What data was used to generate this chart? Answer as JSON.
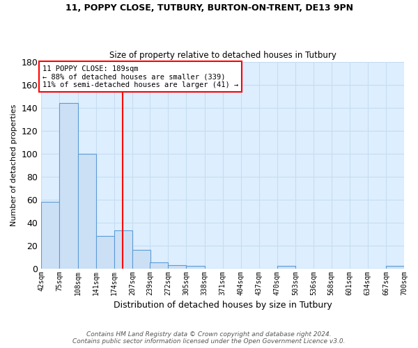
{
  "title1": "11, POPPY CLOSE, TUTBURY, BURTON-ON-TRENT, DE13 9PN",
  "title2": "Size of property relative to detached houses in Tutbury",
  "xlabel": "Distribution of detached houses by size in Tutbury",
  "ylabel": "Number of detached properties",
  "footnote": "Contains HM Land Registry data © Crown copyright and database right 2024.\nContains public sector information licensed under the Open Government Licence v3.0.",
  "bin_edges": [
    42,
    75,
    108,
    141,
    174,
    207,
    239,
    272,
    305,
    338,
    371,
    404,
    437,
    470,
    503,
    536,
    568,
    601,
    634,
    667,
    700
  ],
  "bar_heights": [
    58,
    144,
    100,
    28,
    33,
    16,
    5,
    3,
    2,
    0,
    0,
    0,
    0,
    2,
    0,
    0,
    0,
    0,
    0,
    2
  ],
  "bar_color": "#cce0f5",
  "bar_edge_color": "#5b9bd5",
  "grid_color": "#c5ddf0",
  "background_color": "#ddeeff",
  "red_line_x": 189,
  "annotation_text": "11 POPPY CLOSE: 189sqm\n← 88% of detached houses are smaller (339)\n11% of semi-detached houses are larger (41) →",
  "annotation_box_color": "white",
  "annotation_border_color": "red",
  "ylim": [
    0,
    180
  ],
  "tick_labels": [
    "42sqm",
    "75sqm",
    "108sqm",
    "141sqm",
    "174sqm",
    "207sqm",
    "239sqm",
    "272sqm",
    "305sqm",
    "338sqm",
    "371sqm",
    "404sqm",
    "437sqm",
    "470sqm",
    "503sqm",
    "536sqm",
    "568sqm",
    "601sqm",
    "634sqm",
    "667sqm",
    "700sqm"
  ]
}
